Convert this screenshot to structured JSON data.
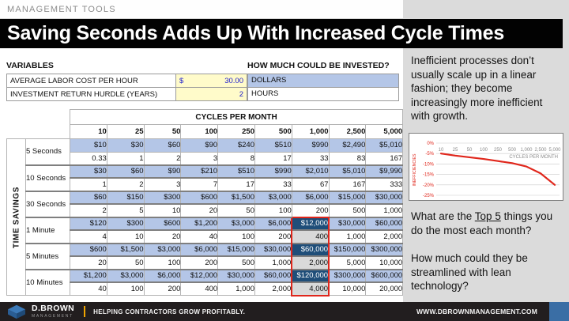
{
  "kicker": "MANAGEMENT TOOLS",
  "title": "Saving Seconds Adds Up With Increased Cycle Times",
  "variables": {
    "heading": "VARIABLES",
    "rows": [
      {
        "label": "AVERAGE LABOR COST PER HOUR",
        "prefix": "$",
        "value": "30.00"
      },
      {
        "label": "INVESTMENT RETURN HURDLE (YEARS)",
        "prefix": "",
        "value": "2"
      }
    ]
  },
  "invested": {
    "heading": "HOW MUCH COULD BE INVESTED?",
    "options": [
      {
        "label": "DOLLARS",
        "selected": true
      },
      {
        "label": "HOURS",
        "selected": false
      }
    ]
  },
  "table": {
    "corner_label": "TIME SAVINGS",
    "header": "CYCLES PER MONTH",
    "columns": [
      "10",
      "25",
      "50",
      "100",
      "250",
      "500",
      "1,000",
      "2,500",
      "5,000"
    ],
    "highlight": {
      "column_index": 6,
      "start_group": 3,
      "end_group": 5
    },
    "groups": [
      {
        "label": "5 Seconds",
        "dollars": [
          "$10",
          "$30",
          "$60",
          "$90",
          "$240",
          "$510",
          "$990",
          "$2,490",
          "$5,010"
        ],
        "hours": [
          "0.33",
          "1",
          "2",
          "3",
          "8",
          "17",
          "33",
          "83",
          "167"
        ]
      },
      {
        "label": "10 Seconds",
        "dollars": [
          "$30",
          "$60",
          "$90",
          "$210",
          "$510",
          "$990",
          "$2,010",
          "$5,010",
          "$9,990"
        ],
        "hours": [
          "1",
          "2",
          "3",
          "7",
          "17",
          "33",
          "67",
          "167",
          "333"
        ]
      },
      {
        "label": "30 Seconds",
        "dollars": [
          "$60",
          "$150",
          "$300",
          "$600",
          "$1,500",
          "$3,000",
          "$6,000",
          "$15,000",
          "$30,000"
        ],
        "hours": [
          "2",
          "5",
          "10",
          "20",
          "50",
          "100",
          "200",
          "500",
          "1,000"
        ]
      },
      {
        "label": "1 Minute",
        "dollars": [
          "$120",
          "$300",
          "$600",
          "$1,200",
          "$3,000",
          "$6,000",
          "$12,000",
          "$30,000",
          "$60,000"
        ],
        "hours": [
          "4",
          "10",
          "20",
          "40",
          "100",
          "200",
          "400",
          "1,000",
          "2,000"
        ]
      },
      {
        "label": "5 Minutes",
        "dollars": [
          "$600",
          "$1,500",
          "$3,000",
          "$6,000",
          "$15,000",
          "$30,000",
          "$60,000",
          "$150,000",
          "$300,000"
        ],
        "hours": [
          "20",
          "50",
          "100",
          "200",
          "500",
          "1,000",
          "2,000",
          "5,000",
          "10,000"
        ]
      },
      {
        "label": "10 Minutes",
        "dollars": [
          "$1,200",
          "$3,000",
          "$6,000",
          "$12,000",
          "$30,000",
          "$60,000",
          "$120,000",
          "$300,000",
          "$600,000"
        ],
        "hours": [
          "40",
          "100",
          "200",
          "400",
          "1,000",
          "2,000",
          "4,000",
          "10,000",
          "20,000"
        ]
      }
    ]
  },
  "side_panel": {
    "paragraph1": "Inefficient processes don’t usually scale up in a linear fashion; they become increasingly more inefficient with growth.",
    "question1_pre": "What are the ",
    "question1_underlined": "Top 5",
    "question1_post": " things you do the most each month?",
    "question2": "How much could they be streamlined with lean technology?"
  },
  "chart_data": {
    "type": "line",
    "x": [
      "10",
      "25",
      "50",
      "100",
      "250",
      "500",
      "1,000",
      "2,500",
      "5,000"
    ],
    "series": [
      {
        "name": "Inefficiencies",
        "values": [
          -5,
          -6,
          -6.8,
          -7.6,
          -8.6,
          -9.6,
          -11.2,
          -14.5,
          -20
        ]
      }
    ],
    "title": "",
    "xlabel": "CYCLES PER MONTH",
    "ylabel": "INEFFICIENCIES",
    "ytick_labels": [
      "0%",
      "-5%",
      "-10%",
      "-15%",
      "-20%",
      "-25%"
    ],
    "ylim": [
      -25,
      0
    ],
    "grid": true,
    "line_color": "#e0261b"
  },
  "footer": {
    "brand": "D.BROWN",
    "brand_sub": "MANAGEMENT",
    "tagline": "HELPING CONTRACTORS GROW PROFITABLY.",
    "website": "WWW.DBROWNMANAGEMENT.COM"
  },
  "colors": {
    "accent_red": "#e0261b",
    "cell_blue": "#b4c6e7",
    "highlight_navy": "#1f4e79",
    "highlight_gray": "#d9d9d9",
    "input_yellow": "#fffbca",
    "input_text_blue": "#1c1ccd",
    "panel_gray": "#dbdbdb",
    "footer_bg": "#221e1f",
    "footer_amber": "#f0a500",
    "footer_blue": "#3a6ea5"
  }
}
